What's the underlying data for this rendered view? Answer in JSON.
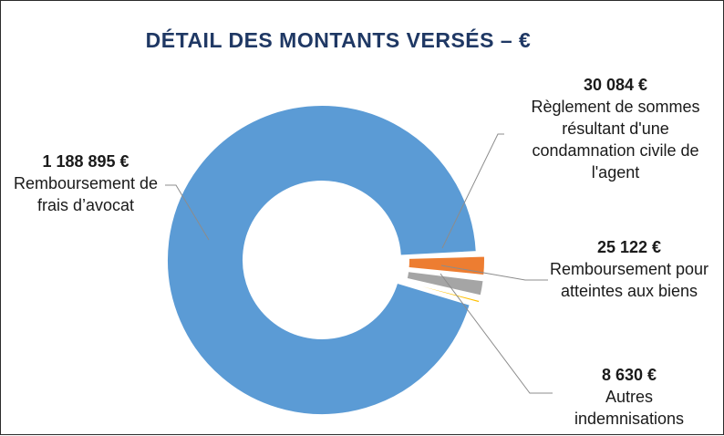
{
  "chart_data": {
    "type": "pie",
    "variant": "donut",
    "title": "DÉTAIL DES MONTANTS VERSÉS – €",
    "categories": [
      "Remboursement de frais d’avocat",
      "Règlement de sommes résultant d'une condamnation civile de l'agent",
      "Remboursement pour atteintes aux biens",
      "Autres indemnisations"
    ],
    "values": [
      1188895,
      30084,
      25122,
      8630
    ],
    "value_labels": [
      "1 188 895 €",
      "30 084 €",
      "25 122 €",
      "8 630 €"
    ],
    "colors": [
      "#5b9bd5",
      "#ed7d31",
      "#a5a5a5",
      "#ffc000"
    ],
    "legend": "none (leader-line labels)"
  }
}
